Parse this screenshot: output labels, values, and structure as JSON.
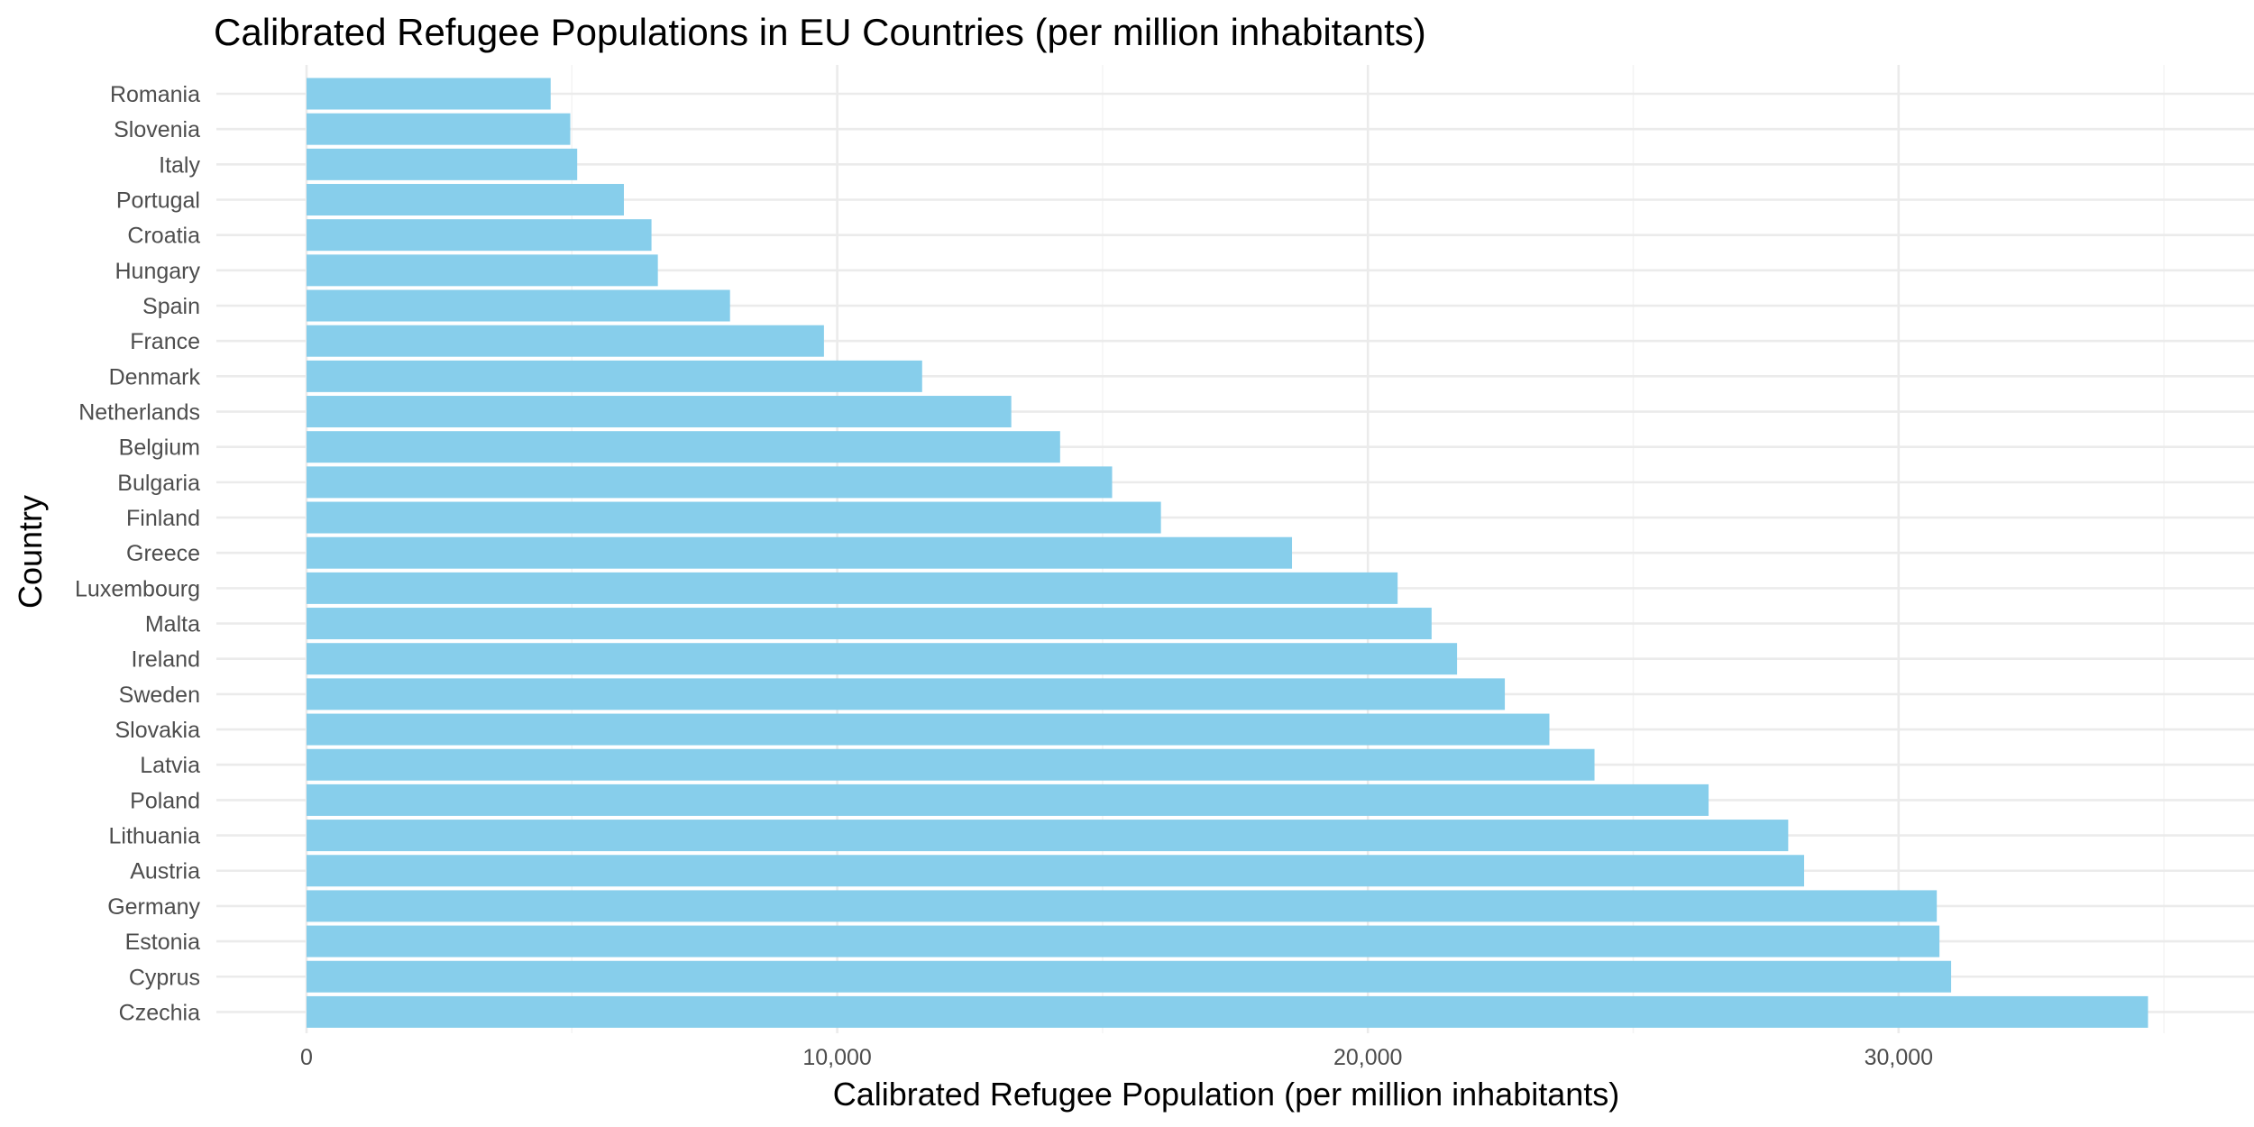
{
  "chart_data": {
    "type": "bar",
    "orientation": "horizontal",
    "title": "Calibrated Refugee Populations in EU Countries (per million inhabitants)",
    "xlabel": "Calibrated Refugee Population (per million inhabitants)",
    "ylabel": "Country",
    "xlim": [
      0,
      35000
    ],
    "xticks": [
      0,
      10000,
      20000,
      30000
    ],
    "xtick_labels": [
      "0",
      "10,000",
      "20,000",
      "30,000"
    ],
    "grid": true,
    "legend": "none",
    "bar_color": "#87CEEB",
    "categories": [
      "Romania",
      "Slovenia",
      "Italy",
      "Portugal",
      "Croatia",
      "Hungary",
      "Spain",
      "France",
      "Denmark",
      "Netherlands",
      "Belgium",
      "Bulgaria",
      "Finland",
      "Greece",
      "Luxembourg",
      "Malta",
      "Ireland",
      "Sweden",
      "Slovakia",
      "Latvia",
      "Poland",
      "Lithuania",
      "Austria",
      "Germany",
      "Estonia",
      "Cyprus",
      "Czechia"
    ],
    "values": [
      4600,
      4970,
      5100,
      5980,
      6500,
      6620,
      7980,
      9750,
      11600,
      13280,
      14200,
      15180,
      16100,
      18570,
      20560,
      21200,
      21680,
      22580,
      23420,
      24270,
      26420,
      27920,
      28220,
      30720,
      30770,
      30990,
      34700
    ]
  }
}
